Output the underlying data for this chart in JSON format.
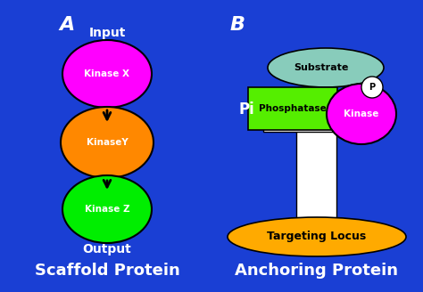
{
  "background_color": "#1a3fd4",
  "title_a": "Scaffold Protein",
  "title_b": "Anchoring Protein",
  "label_a": "A",
  "label_b": "B",
  "label_input": "Input",
  "label_output": "Output",
  "label_pi": "Pi",
  "kinase_x_color": "#ff00ff",
  "kinase_y_color": "#ff8800",
  "kinase_z_color": "#00ee00",
  "kinase_x_label": "Kinase X",
  "kinase_y_label": "KinaseY",
  "kinase_z_label": "Kinase Z",
  "substrate_color": "#88ccbb",
  "substrate_label": "Substrate",
  "phosphatase_color": "#55ee00",
  "phosphatase_label": "Phosphatase",
  "kinase_b_color": "#ff00ff",
  "kinase_b_label": "Kinase",
  "targeting_color": "#ffaa00",
  "targeting_label": "Targeting Locus",
  "white": "#ffffff",
  "black": "#000000",
  "p_label": "P"
}
